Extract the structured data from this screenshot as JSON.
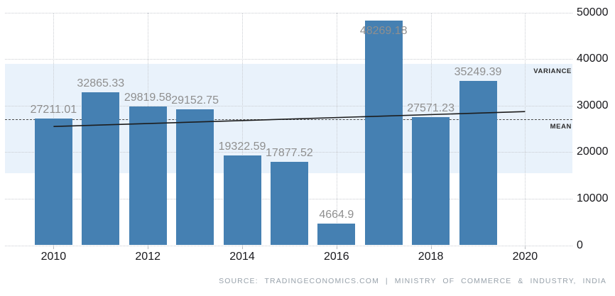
{
  "chart_data": {
    "type": "bar",
    "title": "",
    "xlabel": "",
    "ylabel": "",
    "categories": [
      2010,
      2011,
      2012,
      2013,
      2014,
      2015,
      2016,
      2017,
      2018,
      2019
    ],
    "values": [
      27211.01,
      32865.33,
      29819.58,
      29152.75,
      19322.59,
      17877.52,
      4664.9,
      48269.18,
      27571.23,
      35249.39
    ],
    "bar_value_labels": [
      "27211.01",
      "32865.33",
      "29819.58",
      "29152.75",
      "19322.59",
      "17877.52",
      "4664.9",
      "48269.18",
      "27571.23",
      "35249.39"
    ],
    "ylim": [
      0,
      50000
    ],
    "yticks": [
      0,
      10000,
      20000,
      30000,
      40000,
      50000
    ],
    "ytick_labels": [
      "0",
      "10000",
      "20000",
      "30000",
      "40000",
      "50000"
    ],
    "xticks": [
      2010,
      2012,
      2014,
      2016,
      2018,
      2020
    ],
    "xtick_labels": [
      "2010",
      "2012",
      "2014",
      "2016",
      "2018",
      "2020"
    ],
    "grid": "dotted",
    "legend_position": "none",
    "y_axis_side": "right",
    "colors": {
      "bar": "#4580b2",
      "variance_band": "#e9f2fb",
      "grid": "#c9ccd1",
      "mean_line": "#4a4a4a",
      "trend_line": "#1c1c1c",
      "bar_label_text": "#8f8f8f",
      "axis_text": "#18181c",
      "source_text": "#98a2ab"
    },
    "variance_band": {
      "label": "VARIANCE",
      "low": 15500,
      "high": 38900
    },
    "mean_line": {
      "label": "MEAN",
      "value": 27100
    },
    "trend_line": {
      "x_start": 2010,
      "y_start": 25500,
      "x_end": 2020,
      "y_end": 28700
    }
  },
  "footer": {
    "source_text": "SOURCE: TRADINGECONOMICS.COM | MINISTRY OF COMMERCE & INDUSTRY, INDIA"
  }
}
